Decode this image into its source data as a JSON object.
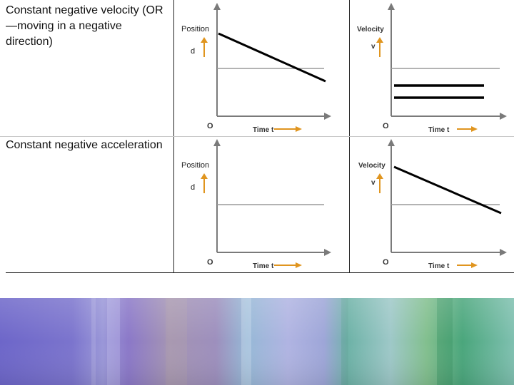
{
  "rows": [
    {
      "label": "Constant negative velocity (OR—moving in a negative direction)"
    },
    {
      "label": "Constant negative acceleration"
    }
  ],
  "graphs": {
    "r1_position": {
      "y_title": "Position",
      "y_symbol": "d",
      "origin": "O",
      "x_label": "Time t"
    },
    "r1_velocity": {
      "y_title": "Velocity",
      "y_symbol": "v",
      "origin": "O",
      "x_label": "Time t"
    },
    "r2_position": {
      "y_title": "Position",
      "y_symbol": "d",
      "origin": "O",
      "x_label": "Time t"
    },
    "r2_velocity": {
      "y_title": "Velocity",
      "y_symbol": "v",
      "origin": "O",
      "x_label": "Time t"
    }
  },
  "colors": {
    "axis": "#7a7a7a",
    "arrow": "#e0951f",
    "plot_line": "#000000",
    "grid_line": "#c8c8c8",
    "border": "#222222"
  }
}
